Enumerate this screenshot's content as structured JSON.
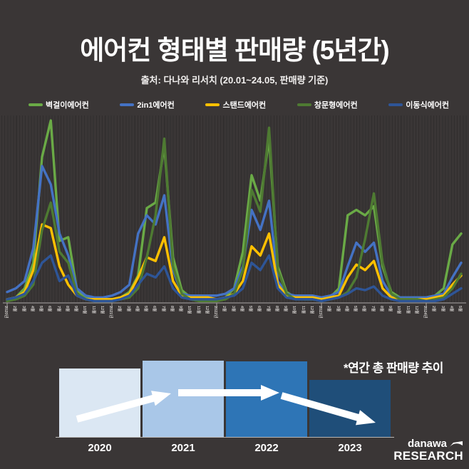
{
  "header": {
    "title": "에어컨 형태별 판매량 (5년간)",
    "subtitle": "출처: 다나와 리서치 (20.01~24.05, 판매량 기준)"
  },
  "legend": {
    "items": [
      {
        "id": "wall",
        "label": "벽걸이에어컨",
        "color": "#6aaa46"
      },
      {
        "id": "2in1",
        "label": "2in1에어컨",
        "color": "#4472c4"
      },
      {
        "id": "stand",
        "label": "스탠드에어컨",
        "color": "#ffc000"
      },
      {
        "id": "window",
        "label": "창문형에어컨",
        "color": "#4e7a32"
      },
      {
        "id": "portable",
        "label": "이동식에어컨",
        "color": "#2e5597"
      }
    ]
  },
  "chart_data": [
    {
      "type": "line",
      "title": "에어컨 형태별 판매량 (5년간)",
      "xlabel": "",
      "ylabel": "",
      "ylim": [
        0,
        100
      ],
      "y_axis_visible": false,
      "grid": "fine vertical stripes",
      "legend_position": "top",
      "x": [
        "2020년",
        "2월",
        "3월",
        "4월",
        "5월",
        "6월",
        "7월",
        "8월",
        "9월",
        "10월",
        "11월",
        "12월",
        "2021년",
        "2월",
        "3월",
        "4월",
        "5월",
        "6월",
        "7월",
        "8월",
        "9월",
        "10월",
        "11월",
        "12월",
        "2022년",
        "2월",
        "3월",
        "4월",
        "5월",
        "6월",
        "7월",
        "8월",
        "9월",
        "10월",
        "11월",
        "12월",
        "2023년",
        "2월",
        "3월",
        "4월",
        "5월",
        "6월",
        "7월",
        "8월",
        "9월",
        "10월",
        "11월",
        "12월",
        "2024년",
        "2월",
        "3월",
        "4월",
        "5월"
      ],
      "series": [
        {
          "id": "wall",
          "name": "벽걸이에어컨",
          "color": "#6aaa46",
          "values": [
            2,
            3,
            8,
            22,
            80,
            100,
            34,
            36,
            7,
            3,
            2,
            2,
            2,
            3,
            6,
            15,
            52,
            55,
            86,
            25,
            7,
            3,
            2,
            2,
            2,
            3,
            8,
            28,
            70,
            56,
            90,
            20,
            6,
            3,
            2,
            2,
            2,
            3,
            8,
            48,
            51,
            48,
            53,
            20,
            6,
            3,
            3,
            3,
            3,
            4,
            8,
            32,
            38
          ]
        },
        {
          "id": "2in1",
          "name": "2in1에어컨",
          "color": "#4472c4",
          "values": [
            6,
            8,
            12,
            30,
            75,
            65,
            38,
            26,
            8,
            4,
            3,
            3,
            4,
            6,
            10,
            38,
            48,
            43,
            59,
            18,
            5,
            4,
            4,
            4,
            4,
            5,
            8,
            20,
            51,
            40,
            56,
            12,
            5,
            4,
            4,
            4,
            3,
            4,
            6,
            20,
            33,
            28,
            33,
            12,
            4,
            3,
            3,
            3,
            3,
            4,
            5,
            14,
            22
          ]
        },
        {
          "id": "stand",
          "name": "스탠드에어컨",
          "color": "#ffc000",
          "values": [
            2,
            3,
            6,
            18,
            43,
            41,
            20,
            10,
            4,
            2,
            2,
            2,
            2,
            3,
            5,
            14,
            25,
            23,
            36,
            12,
            4,
            3,
            3,
            3,
            2,
            3,
            5,
            12,
            31,
            26,
            38,
            10,
            4,
            3,
            3,
            3,
            2,
            3,
            4,
            14,
            21,
            18,
            23,
            8,
            3,
            2,
            2,
            2,
            2,
            3,
            4,
            10,
            15
          ]
        },
        {
          "id": "window",
          "name": "창문형에어컨",
          "color": "#4e7a32",
          "values": [
            1,
            2,
            4,
            10,
            40,
            55,
            28,
            22,
            5,
            2,
            1,
            1,
            1,
            2,
            3,
            8,
            25,
            48,
            90,
            20,
            5,
            2,
            1,
            1,
            1,
            2,
            5,
            18,
            62,
            50,
            96,
            18,
            5,
            2,
            2,
            2,
            1,
            2,
            3,
            6,
            14,
            35,
            60,
            22,
            5,
            2,
            2,
            2,
            1,
            2,
            3,
            8,
            16
          ]
        },
        {
          "id": "portable",
          "name": "이동식에어컨",
          "color": "#2e5597",
          "values": [
            2,
            3,
            5,
            12,
            22,
            26,
            12,
            15,
            4,
            2,
            1,
            1,
            1,
            2,
            4,
            10,
            16,
            14,
            20,
            8,
            3,
            2,
            2,
            2,
            2,
            3,
            4,
            8,
            22,
            18,
            26,
            8,
            3,
            2,
            2,
            2,
            1,
            2,
            3,
            5,
            8,
            7,
            9,
            4,
            2,
            1,
            1,
            1,
            1,
            1,
            2,
            5,
            8
          ]
        }
      ]
    },
    {
      "type": "bar",
      "title": "*연간 총 판매량 추이",
      "categories": [
        "2020",
        "2021",
        "2022",
        "2023"
      ],
      "values_relative": [
        90,
        100,
        99,
        75
      ],
      "colors": [
        "#dbe7f3",
        "#a9c7e8",
        "#2e75b6",
        "#1f4e79"
      ],
      "trend": [
        "up",
        "flat",
        "down"
      ],
      "legend_position": "none"
    }
  ],
  "logo": {
    "brand": "danawa",
    "sub": "RESEARCH"
  }
}
